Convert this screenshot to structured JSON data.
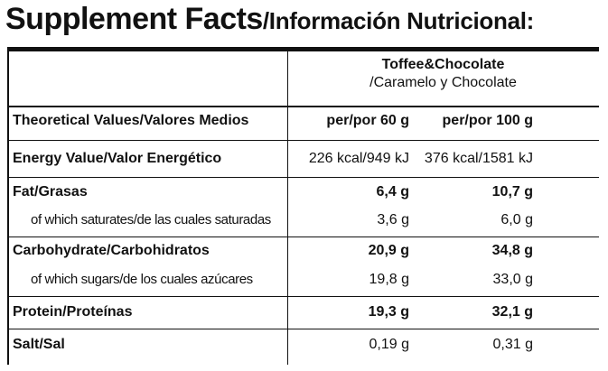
{
  "header": {
    "title_main": "Supplement Facts",
    "title_sub": "/Información Nutricional:"
  },
  "product": {
    "name": "Toffee&Chocolate",
    "name_translated": "/Caramelo y Chocolate"
  },
  "columns": {
    "label": "Theoretical Values/Valores Medios",
    "per_portion": "per/por 60 g",
    "per_100": "per/por 100 g"
  },
  "rows": [
    {
      "label": "Energy Value/Valor Energético",
      "v60": "226 kcal/949 kJ",
      "v100": "376 kcal/1581 kJ"
    },
    {
      "label": "Fat/Grasas",
      "v60": "6,4 g",
      "v100": "10,7 g"
    },
    {
      "label": "of which saturates/de las cuales saturadas",
      "v60": "3,6 g",
      "v100": "6,0 g"
    },
    {
      "label": "Carbohydrate/Carbohidratos",
      "v60": "20,9 g",
      "v100": "34,8 g"
    },
    {
      "label": "of which sugars/de los cuales azúcares",
      "v60": "19,8 g",
      "v100": "33,0 g"
    },
    {
      "label": "Protein/Proteínas",
      "v60": "19,3 g",
      "v100": "32,1 g"
    },
    {
      "label": "Salt/Sal",
      "v60": "0,19 g",
      "v100": "0,31 g"
    }
  ]
}
